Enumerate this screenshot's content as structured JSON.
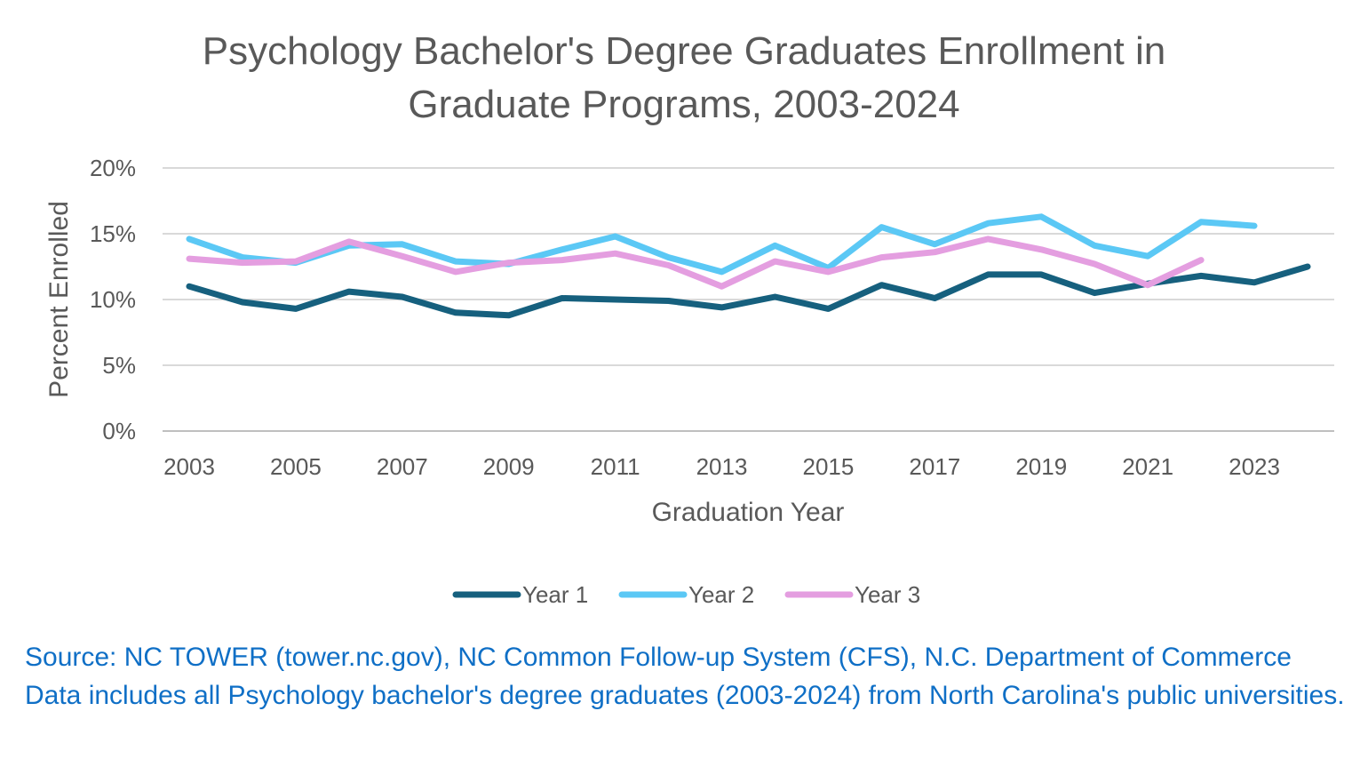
{
  "chart_data": {
    "type": "line",
    "title_lines": [
      "Psychology Bachelor's Degree Graduates Enrollment in",
      "Graduate Programs, 2003-2024"
    ],
    "xlabel": "Graduation Year",
    "ylabel": "Percent Enrolled",
    "x": [
      2003,
      2004,
      2005,
      2006,
      2007,
      2008,
      2009,
      2010,
      2011,
      2012,
      2013,
      2014,
      2015,
      2016,
      2017,
      2018,
      2019,
      2020,
      2021,
      2022,
      2023,
      2024
    ],
    "x_tick_labels": [
      "2003",
      "2005",
      "2007",
      "2009",
      "2011",
      "2013",
      "2015",
      "2017",
      "2019",
      "2021",
      "2023"
    ],
    "ylim": [
      0,
      20
    ],
    "y_tick_labels": [
      "0%",
      "5%",
      "10%",
      "15%",
      "20%"
    ],
    "grid": true,
    "legend_position": "bottom",
    "series": [
      {
        "name": "Year 1",
        "color": "#16607e",
        "values": [
          11.0,
          9.8,
          9.3,
          10.6,
          10.2,
          9.0,
          8.8,
          10.1,
          10.0,
          9.9,
          9.4,
          10.2,
          9.3,
          11.1,
          10.1,
          11.9,
          11.9,
          10.5,
          11.2,
          11.8,
          11.3,
          12.5
        ]
      },
      {
        "name": "Year 2",
        "color": "#5bc8f5",
        "values": [
          14.6,
          13.2,
          12.8,
          14.1,
          14.2,
          12.9,
          12.7,
          13.8,
          14.8,
          13.2,
          12.1,
          14.1,
          12.4,
          15.5,
          14.2,
          15.8,
          16.3,
          14.1,
          13.3,
          15.9,
          15.6,
          null
        ]
      },
      {
        "name": "Year 3",
        "color": "#e49ee0",
        "values": [
          13.1,
          12.8,
          12.9,
          14.4,
          13.3,
          12.1,
          12.8,
          13.0,
          13.5,
          12.6,
          11.0,
          12.9,
          12.1,
          13.2,
          13.6,
          14.6,
          13.8,
          12.7,
          11.1,
          13.0,
          null,
          null
        ]
      }
    ]
  },
  "source_lines": [
    "Source: NC TOWER (tower.nc.gov), NC Common Follow-up System (CFS), N.C. Department of Commerce",
    "Data includes all Psychology bachelor's degree graduates (2003-2024) from North Carolina's public universities."
  ]
}
